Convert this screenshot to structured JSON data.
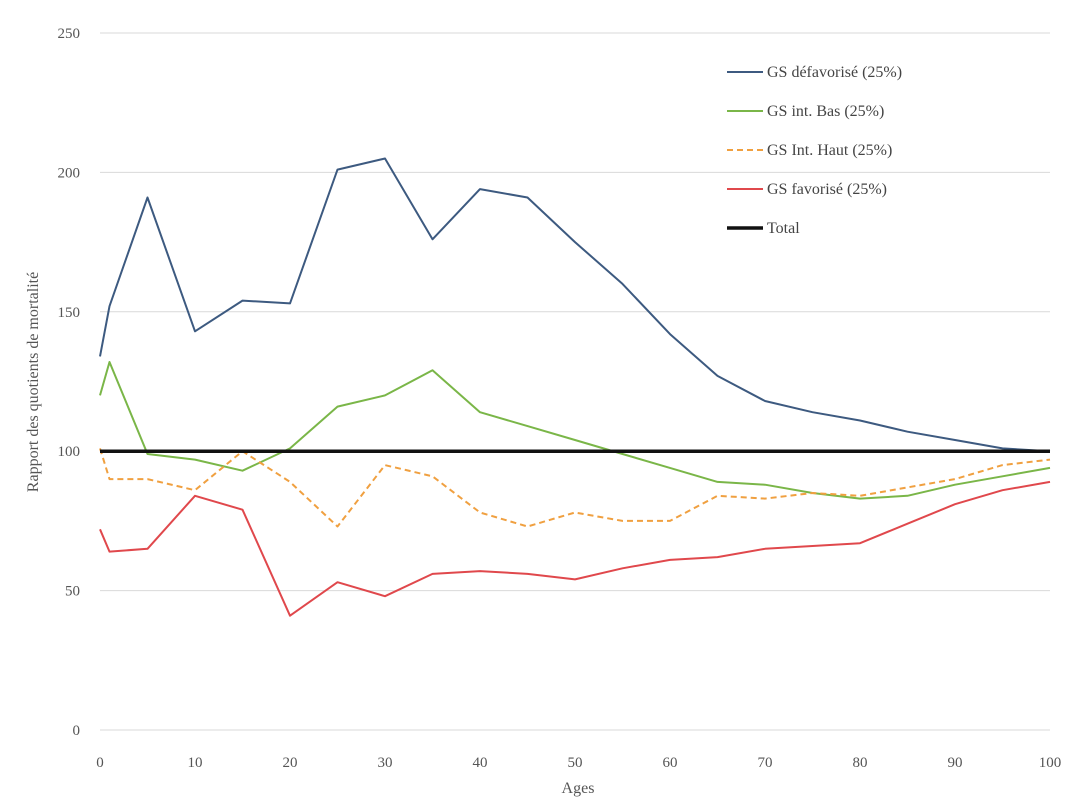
{
  "chart_data": {
    "type": "line",
    "xlabel": "Ages",
    "ylabel": "Rapport des quotients de mortalité",
    "xlim": [
      0,
      100
    ],
    "ylim": [
      0,
      250
    ],
    "xticks": [
      0,
      10,
      20,
      30,
      40,
      50,
      60,
      70,
      80,
      90,
      100
    ],
    "yticks": [
      0,
      50,
      100,
      150,
      200,
      250
    ],
    "grid": "horizontal",
    "legend_position": "top-right",
    "series": [
      {
        "name": "GS défavorisé (25%)",
        "color": "#3d5a80",
        "style": "solid",
        "x": [
          0,
          1,
          5,
          10,
          15,
          20,
          25,
          30,
          35,
          40,
          45,
          50,
          55,
          60,
          65,
          70,
          75,
          80,
          85,
          90,
          95,
          100
        ],
        "y": [
          134,
          152,
          191,
          143,
          154,
          153,
          201,
          205,
          176,
          194,
          191,
          175,
          160,
          142,
          127,
          118,
          114,
          111,
          107,
          104,
          101,
          100
        ]
      },
      {
        "name": "GS int. Bas (25%)",
        "color": "#7ab648",
        "style": "solid",
        "x": [
          0,
          1,
          5,
          10,
          15,
          20,
          25,
          30,
          35,
          40,
          45,
          50,
          55,
          60,
          65,
          70,
          75,
          80,
          85,
          90,
          95,
          100
        ],
        "y": [
          120,
          132,
          99,
          97,
          93,
          101,
          116,
          120,
          129,
          114,
          109,
          104,
          99,
          94,
          89,
          88,
          85,
          83,
          84,
          88,
          91,
          94
        ]
      },
      {
        "name": "GS Int. Haut (25%)",
        "color": "#f0a040",
        "style": "dashed",
        "x": [
          0,
          1,
          5,
          10,
          15,
          20,
          25,
          30,
          35,
          40,
          45,
          50,
          55,
          60,
          65,
          70,
          75,
          80,
          85,
          90,
          95,
          100
        ],
        "y": [
          101,
          90,
          90,
          86,
          100,
          89,
          73,
          95,
          91,
          78,
          73,
          78,
          75,
          75,
          84,
          83,
          85,
          84,
          87,
          90,
          95,
          97
        ]
      },
      {
        "name": "GS favorisé (25%)",
        "color": "#e0484c",
        "style": "solid",
        "x": [
          0,
          1,
          5,
          10,
          15,
          20,
          25,
          30,
          35,
          40,
          45,
          50,
          55,
          60,
          65,
          70,
          75,
          80,
          85,
          90,
          95,
          100
        ],
        "y": [
          72,
          64,
          65,
          84,
          79,
          41,
          53,
          48,
          56,
          57,
          56,
          54,
          58,
          61,
          62,
          65,
          66,
          67,
          74,
          81,
          86,
          89
        ]
      },
      {
        "name": "Total",
        "color": "#111111",
        "style": "bold",
        "x": [
          0,
          100
        ],
        "y": [
          100,
          100
        ]
      }
    ]
  }
}
